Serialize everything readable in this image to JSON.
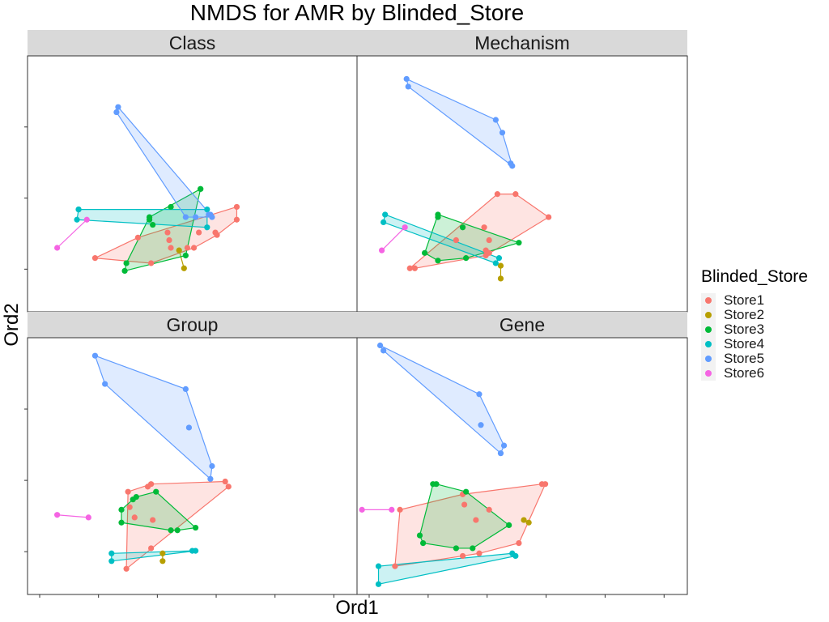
{
  "chart_data": {
    "type": "scatter",
    "title": "NMDS for AMR by Blinded_Store",
    "xlabel": "Ord1",
    "ylabel": "Ord2",
    "legend": {
      "title": "Blinded_Store",
      "position": "right",
      "entries": [
        {
          "name": "Store1",
          "color": "#F8766D"
        },
        {
          "name": "Store2",
          "color": "#B79F00"
        },
        {
          "name": "Store3",
          "color": "#00BA38"
        },
        {
          "name": "Store4",
          "color": "#00BFC4"
        },
        {
          "name": "Store5",
          "color": "#619CFF"
        },
        {
          "name": "Store6",
          "color": "#F564E3"
        }
      ]
    },
    "xlim": [
      0,
      1
    ],
    "ylim": [
      0,
      1
    ],
    "facets": [
      {
        "label": "Class",
        "series": [
          {
            "name": "Store1",
            "points": [
              [
                0.205,
                0.21
              ],
              [
                0.375,
                0.19
              ],
              [
                0.57,
                0.31
              ],
              [
                0.635,
                0.36
              ],
              [
                0.635,
                0.41
              ],
              [
                0.575,
                0.3
              ],
              [
                0.52,
                0.31
              ],
              [
                0.505,
                0.25
              ],
              [
                0.485,
                0.25
              ],
              [
                0.435,
                0.25
              ],
              [
                0.43,
                0.28
              ],
              [
                0.425,
                0.31
              ],
              [
                0.335,
                0.29
              ]
            ]
          },
          {
            "name": "Store2",
            "points": [
              [
                0.46,
                0.24
              ],
              [
                0.475,
                0.17
              ]
            ]
          },
          {
            "name": "Store3",
            "points": [
              [
                0.48,
                0.22
              ],
              [
                0.525,
                0.48
              ],
              [
                0.435,
                0.41
              ],
              [
                0.38,
                0.34
              ],
              [
                0.3,
                0.19
              ],
              [
                0.295,
                0.16
              ],
              [
                0.37,
                0.37
              ],
              [
                0.37,
                0.36
              ],
              [
                0.525,
                0.48
              ]
            ]
          },
          {
            "name": "Store4",
            "points": [
              [
                0.155,
                0.4
              ],
              [
                0.545,
                0.4
              ],
              [
                0.545,
                0.33
              ],
              [
                0.15,
                0.36
              ],
              [
                0.155,
                0.4
              ]
            ]
          },
          {
            "name": "Store5",
            "points": [
              [
                0.27,
                0.78
              ],
              [
                0.275,
                0.8
              ],
              [
                0.48,
                0.37
              ],
              [
                0.55,
                0.38
              ],
              [
                0.56,
                0.37
              ],
              [
                0.555,
                0.38
              ],
              [
                0.51,
                0.37
              ]
            ]
          },
          {
            "name": "Store6",
            "points": [
              [
                0.09,
                0.25
              ],
              [
                0.18,
                0.36
              ]
            ]
          }
        ]
      },
      {
        "label": "Mechanism",
        "series": [
          {
            "name": "Store1",
            "points": [
              [
                0.16,
                0.17
              ],
              [
                0.48,
                0.46
              ],
              [
                0.425,
                0.46
              ],
              [
                0.58,
                0.37
              ],
              [
                0.39,
                0.24
              ],
              [
                0.39,
                0.22
              ],
              [
                0.4,
                0.23
              ],
              [
                0.4,
                0.28
              ],
              [
                0.3,
                0.28
              ],
              [
                0.385,
                0.33
              ],
              [
                0.175,
                0.17
              ]
            ]
          },
          {
            "name": "Store2",
            "points": [
              [
                0.435,
                0.18
              ],
              [
                0.435,
                0.13
              ]
            ]
          },
          {
            "name": "Store3",
            "points": [
              [
                0.245,
                0.37
              ],
              [
                0.32,
                0.33
              ],
              [
                0.49,
                0.27
              ],
              [
                0.33,
                0.21
              ],
              [
                0.245,
                0.2
              ],
              [
                0.205,
                0.23
              ],
              [
                0.245,
                0.38
              ]
            ]
          },
          {
            "name": "Store4",
            "points": [
              [
                0.085,
                0.38
              ],
              [
                0.43,
                0.21
              ],
              [
                0.42,
                0.19
              ],
              [
                0.08,
                0.35
              ]
            ]
          },
          {
            "name": "Store5",
            "points": [
              [
                0.15,
                0.91
              ],
              [
                0.155,
                0.88
              ],
              [
                0.42,
                0.75
              ],
              [
                0.44,
                0.7
              ],
              [
                0.465,
                0.58
              ],
              [
                0.47,
                0.57
              ]
            ]
          },
          {
            "name": "Store6",
            "points": [
              [
                0.075,
                0.24
              ],
              [
                0.145,
                0.33
              ]
            ]
          }
        ]
      },
      {
        "label": "Group",
        "series": [
          {
            "name": "Store1",
            "points": [
              [
                0.3,
                0.1
              ],
              [
                0.365,
                0.42
              ],
              [
                0.6,
                0.44
              ],
              [
                0.61,
                0.42
              ],
              [
                0.375,
                0.18
              ],
              [
                0.38,
                0.29
              ],
              [
                0.325,
                0.3
              ],
              [
                0.31,
                0.34
              ],
              [
                0.305,
                0.4
              ],
              [
                0.375,
                0.43
              ]
            ]
          },
          {
            "name": "Store2",
            "points": [
              [
                0.41,
                0.16
              ],
              [
                0.41,
                0.13
              ]
            ]
          },
          {
            "name": "Store3",
            "points": [
              [
                0.455,
                0.25
              ],
              [
                0.39,
                0.4
              ],
              [
                0.33,
                0.38
              ],
              [
                0.32,
                0.37
              ],
              [
                0.285,
                0.33
              ],
              [
                0.285,
                0.28
              ],
              [
                0.435,
                0.25
              ],
              [
                0.51,
                0.26
              ]
            ]
          },
          {
            "name": "Store4",
            "points": [
              [
                0.255,
                0.16
              ],
              [
                0.5,
                0.17
              ],
              [
                0.51,
                0.17
              ],
              [
                0.255,
                0.13
              ]
            ]
          },
          {
            "name": "Store5",
            "points": [
              [
                0.205,
                0.93
              ],
              [
                0.235,
                0.82
              ],
              [
                0.48,
                0.8
              ],
              [
                0.49,
                0.65
              ],
              [
                0.56,
                0.5
              ],
              [
                0.555,
                0.45
              ]
            ]
          },
          {
            "name": "Store6",
            "points": [
              [
                0.09,
                0.31
              ],
              [
                0.185,
                0.3
              ]
            ]
          }
        ]
      },
      {
        "label": "Gene",
        "series": [
          {
            "name": "Store1",
            "points": [
              [
                0.115,
                0.11
              ],
              [
                0.56,
                0.43
              ],
              [
                0.57,
                0.43
              ],
              [
                0.49,
                0.2
              ],
              [
                0.37,
                0.16
              ],
              [
                0.32,
                0.15
              ],
              [
                0.36,
                0.29
              ],
              [
                0.325,
                0.35
              ],
              [
                0.32,
                0.39
              ],
              [
                0.4,
                0.33
              ],
              [
                0.13,
                0.33
              ]
            ]
          },
          {
            "name": "Store2",
            "points": [
              [
                0.505,
                0.29
              ],
              [
                0.52,
                0.28
              ]
            ]
          },
          {
            "name": "Store3",
            "points": [
              [
                0.23,
                0.43
              ],
              [
                0.24,
                0.43
              ],
              [
                0.33,
                0.4
              ],
              [
                0.46,
                0.27
              ],
              [
                0.35,
                0.18
              ],
              [
                0.3,
                0.18
              ],
              [
                0.2,
                0.2
              ],
              [
                0.19,
                0.23
              ]
            ]
          },
          {
            "name": "Store4",
            "points": [
              [
                0.065,
                0.11
              ],
              [
                0.47,
                0.16
              ],
              [
                0.48,
                0.15
              ],
              [
                0.065,
                0.04
              ]
            ]
          },
          {
            "name": "Store5",
            "points": [
              [
                0.07,
                0.97
              ],
              [
                0.08,
                0.95
              ],
              [
                0.37,
                0.78
              ],
              [
                0.375,
                0.66
              ],
              [
                0.445,
                0.58
              ],
              [
                0.435,
                0.55
              ]
            ]
          },
          {
            "name": "Store6",
            "points": [
              [
                0.015,
                0.33
              ],
              [
                0.105,
                0.33
              ]
            ]
          }
        ]
      }
    ],
    "grid": false
  }
}
